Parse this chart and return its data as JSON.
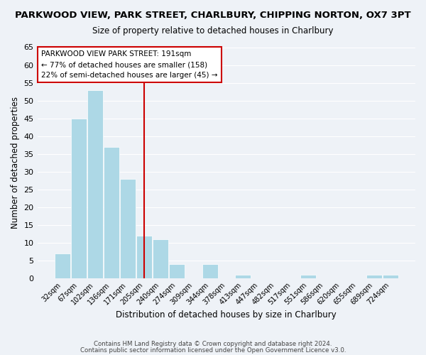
{
  "title": "PARKWOOD VIEW, PARK STREET, CHARLBURY, CHIPPING NORTON, OX7 3PT",
  "subtitle": "Size of property relative to detached houses in Charlbury",
  "xlabel": "Distribution of detached houses by size in Charlbury",
  "ylabel": "Number of detached properties",
  "bar_labels": [
    "32sqm",
    "67sqm",
    "102sqm",
    "136sqm",
    "171sqm",
    "205sqm",
    "240sqm",
    "274sqm",
    "309sqm",
    "344sqm",
    "378sqm",
    "413sqm",
    "447sqm",
    "482sqm",
    "517sqm",
    "551sqm",
    "586sqm",
    "620sqm",
    "655sqm",
    "689sqm",
    "724sqm"
  ],
  "bar_values": [
    7,
    45,
    53,
    37,
    28,
    12,
    11,
    4,
    0,
    4,
    0,
    1,
    0,
    0,
    0,
    1,
    0,
    0,
    0,
    1,
    1
  ],
  "bar_color": "#add8e6",
  "vline_x": 5,
  "vline_color": "#cc0000",
  "annotation_title": "PARKWOOD VIEW PARK STREET: 191sqm",
  "annotation_line1": "← 77% of detached houses are smaller (158)",
  "annotation_line2": "22% of semi-detached houses are larger (45) →",
  "ylim": [
    0,
    65
  ],
  "yticks": [
    0,
    5,
    10,
    15,
    20,
    25,
    30,
    35,
    40,
    45,
    50,
    55,
    60,
    65
  ],
  "background_color": "#eef2f7",
  "footer_line1": "Contains HM Land Registry data © Crown copyright and database right 2024.",
  "footer_line2": "Contains public sector information licensed under the Open Government Licence v3.0."
}
